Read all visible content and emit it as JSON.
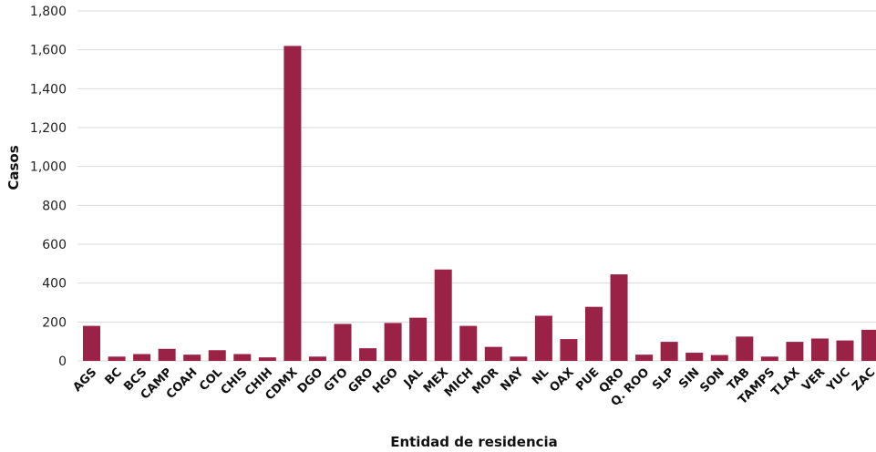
{
  "chart_data": {
    "type": "bar",
    "xlabel": "Entidad de residencia",
    "ylabel": "Casos",
    "ylim": [
      0,
      1800
    ],
    "yticks": [
      0,
      200,
      400,
      600,
      800,
      1000,
      1200,
      1400,
      1600,
      1800
    ],
    "ytick_labels": [
      "0",
      "200",
      "400",
      "600",
      "800",
      "1,000",
      "1,200",
      "1,400",
      "1,600",
      "1,800"
    ],
    "grid": true,
    "bar_color": "#9b2247",
    "grid_color": "#d9d9d9",
    "categories": [
      "AGS",
      "BC",
      "BCS",
      "CAMP",
      "COAH",
      "COL",
      "CHIS",
      "CHIH",
      "CDMX",
      "DGO",
      "GTO",
      "GRO",
      "HGO",
      "JAL",
      "MEX",
      "MICH",
      "MOR",
      "NAY",
      "NL",
      "OAX",
      "PUE",
      "QRO",
      "Q. ROO",
      "SLP",
      "SIN",
      "SON",
      "TAB",
      "TAMPS",
      "TLAX",
      "VER",
      "YUC",
      "ZAC"
    ],
    "values": [
      180,
      22,
      35,
      62,
      32,
      55,
      35,
      18,
      1620,
      22,
      190,
      65,
      195,
      222,
      470,
      180,
      72,
      22,
      232,
      112,
      278,
      445,
      32,
      98,
      42,
      30,
      125,
      22,
      98,
      115,
      105,
      160
    ]
  }
}
